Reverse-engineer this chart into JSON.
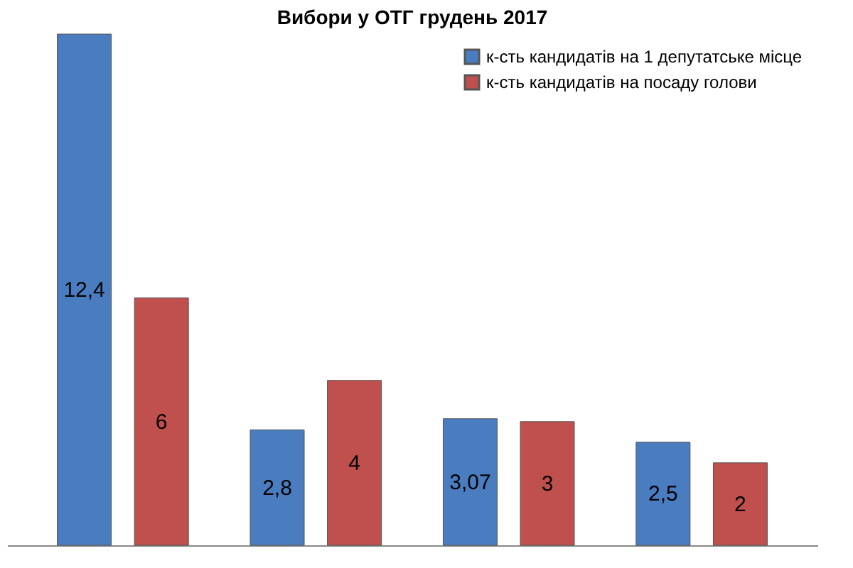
{
  "chart_data": {
    "type": "bar",
    "title": "Вибори у ОТГ грудень 2017",
    "categories": [
      null,
      null,
      null,
      null
    ],
    "series": [
      {
        "name": "к-сть кандидатів на 1 депутатське місце",
        "color": "#4a7cc0",
        "values": [
          12.4,
          2.8,
          3.07,
          2.5
        ],
        "value_labels": [
          "12,4",
          "2,8",
          "3,07",
          "2,5"
        ]
      },
      {
        "name": "к-сть кандидатів на посаду голови",
        "color": "#c0504d",
        "values": [
          6,
          4,
          3,
          2
        ],
        "value_labels": [
          "6",
          "4",
          "3",
          "2"
        ]
      }
    ],
    "legend": "top right",
    "tick_labels": false
  }
}
